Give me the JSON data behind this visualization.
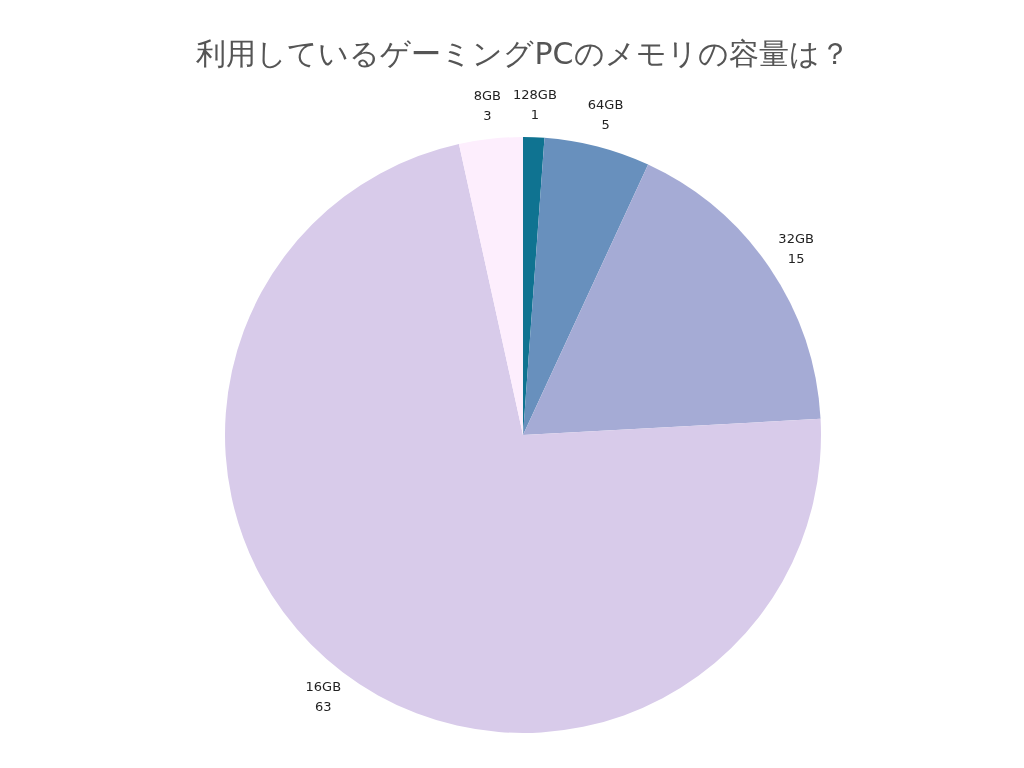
{
  "chart_data": {
    "type": "pie",
    "title": "利用しているゲーミングPCのメモリの容量は？",
    "categories": [
      "128GB",
      "64GB",
      "32GB",
      "16GB",
      "8GB"
    ],
    "values": [
      1,
      5,
      15,
      63,
      3
    ],
    "colors": [
      "#0f7391",
      "#6890bd",
      "#a5abd5",
      "#d8cbea",
      "#fdeefd"
    ],
    "data_labels": true,
    "legend": false
  }
}
